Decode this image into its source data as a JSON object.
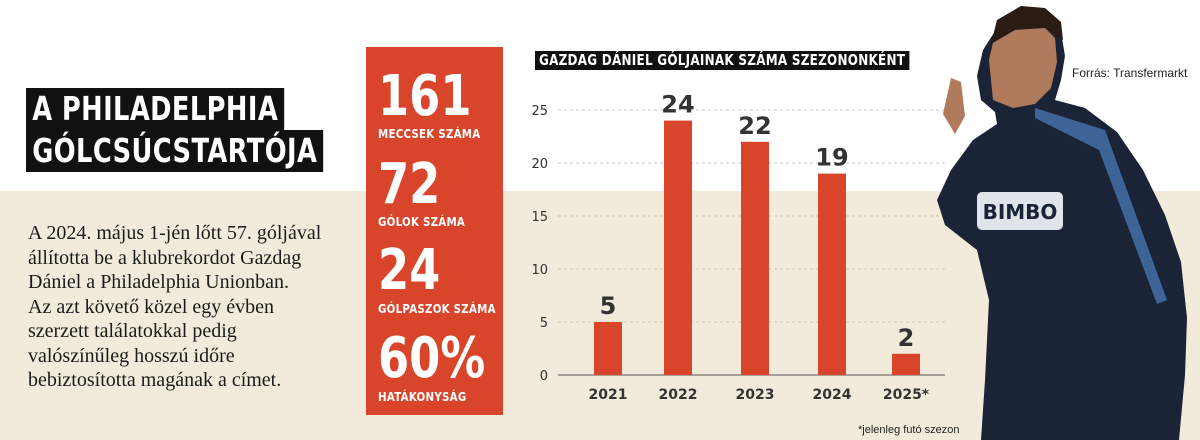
{
  "headline": {
    "line1": "A PHILADELPHIA",
    "line2": "GÓLCSÚCSTARTÓJA"
  },
  "body_lines": [
    "A 2024. május 1-jén lőtt 57. góljával",
    "állította be a klubrekordot Gazdag",
    "Dániel a Philadelphia Unionban.",
    "Az azt követő közel egy évben",
    "szerzett találatokkal pedig",
    "valószínűleg hosszú időre",
    "bebiztosította magának a címet."
  ],
  "stats": [
    {
      "value": "161",
      "label": "MECCSEK SZÁMA"
    },
    {
      "value": "72",
      "label": "GÓLOK SZÁMA"
    },
    {
      "value": "24",
      "label": "GÓLPASZOK SZÁMA"
    },
    {
      "value": "60%",
      "label": "HATÁKONYSÁG"
    }
  ],
  "source": "Forrás: Transfermarkt",
  "footnote": "*jelenleg futó szezon",
  "colors": {
    "accent": "#d9452b",
    "headline_bg": "#111111",
    "panel_bg": "#f2ebdb"
  },
  "chart_data": {
    "type": "bar",
    "title": "GAZDAG DÁNIEL GÓLJAINAK SZÁMA SZEZONONKÉNT",
    "categories": [
      "2021",
      "2022",
      "2023",
      "2024",
      "2025*"
    ],
    "values": [
      5,
      24,
      22,
      19,
      2
    ],
    "yticks": [
      "0",
      "5",
      "10",
      "15",
      "20",
      "25"
    ],
    "ylim": [
      0,
      25
    ],
    "grid": true,
    "xlabel": "",
    "ylabel": ""
  }
}
